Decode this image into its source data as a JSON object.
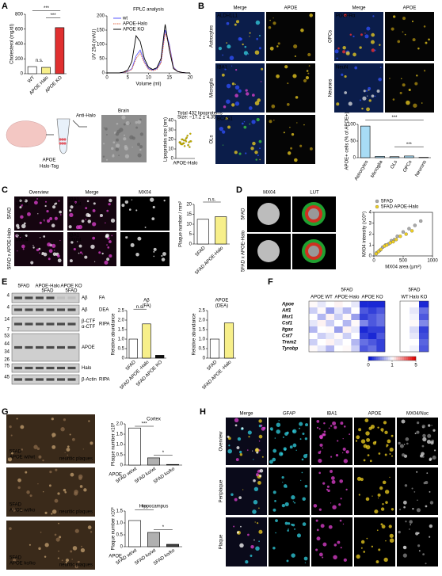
{
  "panel_labels": [
    "A",
    "B",
    "C",
    "D",
    "E",
    "F",
    "G",
    "H"
  ],
  "a": {
    "anti_halo": "Anti-Halo",
    "apoe": "APOE",
    "halo_tag": "Halo-Tag",
    "brain": "Brain"
  },
  "b": {
    "columns": [
      "Merge",
      "APOE"
    ],
    "rows": [
      {
        "cell": "Astrocytes",
        "marker": "ALDH1L1"
      },
      {
        "cell": "Microglia",
        "marker": "IBA1"
      },
      {
        "cell": "OLs",
        "marker": "BCAS1"
      },
      {
        "cell": "OPCs",
        "marker": "PDGFRα"
      },
      {
        "cell": "Neurons",
        "marker": "NeuN"
      }
    ]
  },
  "c": {
    "columns": [
      "Overview",
      "Merge",
      "MX04"
    ],
    "rows": [
      "5FAD",
      "5FAD x APOE-Halo"
    ],
    "stain1": "IBA1",
    "stain2": "MX04"
  },
  "d": {
    "columns": [
      "MX04",
      "LUT"
    ],
    "rows": [
      "5FAD",
      "5FAD x APOE-Halo"
    ]
  },
  "e": {
    "groups": [
      [
        "5FAD"
      ],
      [
        "APOE-Halo",
        "5FAD"
      ],
      [
        "APOE KO",
        "5FAD"
      ]
    ],
    "blot": [
      {
        "markers": [
          "4"
        ],
        "labels": [
          "Aβ"
        ],
        "fraction": "FA"
      },
      {
        "markers": [
          "4"
        ],
        "labels": [
          "Aβ"
        ],
        "fraction": "DEA"
      },
      {
        "markers": [
          "14",
          "7"
        ],
        "labels": [
          "β-CTF",
          "α-CTF"
        ],
        "fraction": "RIPA"
      },
      {
        "markers": [
          "53",
          "44",
          "34",
          "26"
        ],
        "labels": [
          "APOE"
        ]
      },
      {
        "markers": [
          "75"
        ],
        "labels": [
          "Halo"
        ]
      },
      {
        "markers": [
          "45"
        ],
        "labels": [
          "β-Actin"
        ],
        "fraction": "RIPA"
      }
    ]
  },
  "g": {
    "images": [
      [
        "5FAD",
        "APOE wt/wt"
      ],
      [
        "5FAD",
        "APOE wt/ko"
      ],
      [
        "5FAD",
        "APOE ko/ko"
      ]
    ],
    "note": "neuritic plaques"
  },
  "h": {
    "columns": [
      "Merge",
      "GFAP",
      "IBA1",
      "APOE",
      "MX04/Nuc"
    ],
    "rows": [
      "Overview",
      "Periplaque",
      "Plaque"
    ]
  },
  "chart_data": [
    {
      "type": "bar",
      "ylabel": "Cholesterol (mg/dl)",
      "categories": [
        "WT",
        "APOE Halo",
        "APOE KO"
      ],
      "values": [
        95,
        85,
        620
      ],
      "colors": [
        "#ffffff",
        "#f7ef8a",
        "#e03030"
      ],
      "ylim": [
        0,
        800
      ],
      "yticks": [
        0,
        200,
        400,
        600,
        800
      ],
      "annotations": [
        "***",
        "***",
        "n.s."
      ]
    },
    {
      "type": "line",
      "title": "FPLC analysis",
      "xlabel": "Volume (ml)",
      "ylabel": "UV 254 (mAU)",
      "x": [
        0,
        1,
        2,
        3,
        4,
        5,
        6,
        7,
        8,
        9,
        10,
        11,
        12,
        13,
        14,
        15,
        16,
        17,
        18,
        19,
        20
      ],
      "xlim": [
        0,
        20
      ],
      "xticks": [
        0,
        5,
        10,
        15,
        20
      ],
      "ylim": [
        0,
        200
      ],
      "yticks": [
        0,
        50,
        100,
        150,
        200
      ],
      "series": [
        {
          "name": "wt",
          "color": "#5a5aff",
          "values": [
            0,
            0,
            0,
            0,
            2,
            5,
            15,
            60,
            80,
            40,
            15,
            10,
            15,
            40,
            150,
            100,
            20,
            5,
            2,
            0,
            0
          ]
        },
        {
          "name": "APOE-Halo",
          "color": "#e0603a",
          "dashed": true,
          "values": [
            0,
            0,
            0,
            0,
            2,
            5,
            12,
            50,
            70,
            35,
            12,
            8,
            12,
            35,
            140,
            95,
            18,
            5,
            2,
            0,
            0
          ]
        },
        {
          "name": "APOE KO",
          "color": "#000000",
          "values": [
            0,
            0,
            0,
            0,
            3,
            10,
            40,
            130,
            110,
            50,
            20,
            12,
            18,
            50,
            170,
            80,
            15,
            5,
            2,
            0,
            0
          ]
        }
      ]
    },
    {
      "type": "strip",
      "ylabel": "Lipoprotein size (nm)",
      "categories": [
        "APOE-Halo"
      ],
      "values": [
        17,
        15,
        19,
        21,
        14,
        18,
        16,
        20,
        13,
        22,
        17,
        18,
        15,
        16,
        19,
        24,
        12,
        17,
        20,
        16,
        18,
        14,
        26,
        17,
        15
      ],
      "color": "#c8b400",
      "ylim": [
        0,
        40
      ],
      "yticks": [
        0,
        10,
        20,
        30,
        40
      ],
      "annotations": [
        "Total 432 lipoproteins",
        "Size: ~17.2 ± 4.35"
      ]
    },
    {
      "type": "bar",
      "ylabel": "APOE+ cells (% of APOE+)",
      "categories": [
        "Astrocytes",
        "Microglia",
        "OLs",
        "OPCs",
        "Neurons"
      ],
      "values": [
        95,
        4,
        3,
        5,
        1
      ],
      "color": "#a8dcf5",
      "ylim": [
        0,
        100
      ],
      "yticks": [
        0,
        50,
        100
      ],
      "annotations": [
        "***",
        "***"
      ]
    },
    {
      "type": "bar",
      "ylabel": "Plaque number / mm²",
      "categories": [
        "5FAD",
        "5FAD APOE-Halo"
      ],
      "values": [
        12.5,
        13.8
      ],
      "colors": [
        "#ffffff",
        "#f7ef8a"
      ],
      "ylim": [
        0,
        20
      ],
      "yticks": [
        0,
        5,
        10,
        15,
        20
      ],
      "annotations": [
        "n.s."
      ]
    },
    {
      "type": "scatter",
      "xlabel": "MX04 area (µm²)",
      "ylabel": "MX04 intensity (x10⁶)",
      "xlim": [
        0,
        1000
      ],
      "xticks": [
        0,
        500,
        1000
      ],
      "ylim": [
        0,
        4
      ],
      "yticks": [
        0,
        1,
        2,
        3,
        4
      ],
      "series": [
        {
          "name": "5FAD",
          "color": "#aaaaaa",
          "x": [
            50,
            100,
            150,
            200,
            250,
            300,
            350,
            400,
            500,
            600,
            700,
            800
          ],
          "y": [
            0.3,
            0.5,
            0.8,
            1.0,
            1.1,
            1.4,
            1.5,
            1.8,
            2.2,
            2.5,
            2.8,
            3.2
          ]
        },
        {
          "name": "5FAD APOE-Halo",
          "color": "#f0d020",
          "x": [
            40,
            80,
            120,
            180,
            220,
            280,
            330,
            380,
            450,
            550,
            650
          ],
          "y": [
            0.2,
            0.4,
            0.6,
            0.9,
            1.0,
            1.2,
            1.3,
            1.5,
            1.8,
            2.0,
            2.3
          ]
        }
      ]
    },
    {
      "type": "bar",
      "title": "Aβ",
      "subtitle": "(FA)",
      "ylabel": "Relative abundance",
      "categories": [
        "5FAD",
        "5FAD APOE -Halo",
        "5FAD APOE KO"
      ],
      "values": [
        1.0,
        1.8,
        0.15
      ],
      "colors": [
        "#ffffff",
        "#f7ef8a",
        "#111111"
      ],
      "ylim": [
        0,
        2.5
      ],
      "yticks": [
        0,
        0.5,
        {
          "value": 1,
          "label": "1.0"
        },
        1.5,
        {
          "value": 2,
          "label": "2.0"
        },
        2.5
      ],
      "annotations": [
        "n.s."
      ]
    },
    {
      "type": "bar",
      "title": "APOE",
      "subtitle": "(DEA)",
      "ylabel": "Relative abundance",
      "categories": [
        "5FAD",
        "5FAD APOE -Halo"
      ],
      "values": [
        1.0,
        1.85
      ],
      "colors": [
        "#ffffff",
        "#f7ef8a"
      ],
      "ylim": [
        0,
        2.5
      ],
      "yticks": [
        0,
        0.5,
        {
          "value": 1,
          "label": "1.0"
        },
        1.5,
        {
          "value": 2,
          "label": "2.0"
        },
        2.5
      ]
    },
    {
      "type": "heatmap",
      "title": "5FAD",
      "column_groups": [
        "APOE WT",
        "APOE-Halo",
        "APOE KO"
      ],
      "rows": [
        "Apoe",
        "Aif1",
        "Msr1",
        "Csf1",
        "Itgax",
        "Cst7",
        "Trem2",
        "Tyrobp"
      ],
      "values": [
        [
          1.1,
          0.9,
          1.0,
          1.2,
          1.0,
          0.9,
          0.1,
          0.1,
          0.1
        ],
        [
          0.8,
          1.1,
          0.6,
          0.9,
          0.7,
          1.0,
          0.3,
          0.2,
          0.3
        ],
        [
          1.0,
          0.7,
          1.2,
          0.8,
          1.1,
          0.6,
          0.2,
          0.3,
          0.4
        ],
        [
          0.9,
          1.2,
          0.8,
          1.0,
          0.7,
          1.1,
          0.5,
          0.3,
          0.4
        ],
        [
          0.7,
          1.0,
          1.1,
          0.6,
          1.2,
          0.9,
          0.1,
          0.2,
          0.2
        ],
        [
          1.0,
          0.8,
          0.9,
          1.1,
          0.8,
          1.0,
          0.2,
          0.1,
          0.3
        ],
        [
          0.8,
          1.0,
          1.2,
          0.9,
          1.0,
          0.7,
          0.4,
          0.3,
          0.2
        ],
        [
          1.1,
          0.9,
          0.7,
          1.0,
          1.1,
          0.8,
          0.3,
          0.4,
          0.2
        ]
      ],
      "colorscale": {
        "ticks": [
          0,
          1,
          5
        ],
        "colors": [
          "#0010d0",
          "#ffffff",
          "#e00000"
        ]
      }
    },
    {
      "type": "heatmap",
      "title": "5FAD",
      "column_groups": [
        "WT",
        "Halo",
        "KO"
      ],
      "rows": [
        "Apoe",
        "Aif1",
        "Msr1",
        "Csf1",
        "Itgax",
        "Cst7",
        "Trem2",
        "Tyrobp"
      ],
      "values": [
        [
          1,
          1.05,
          0.1
        ],
        [
          1,
          0.9,
          0.4
        ],
        [
          1,
          0.95,
          0.3
        ],
        [
          1,
          1.1,
          0.5
        ],
        [
          1,
          0.85,
          0.2
        ],
        [
          1,
          0.9,
          0.25
        ],
        [
          1,
          1.0,
          0.35
        ],
        [
          1,
          0.95,
          0.3
        ]
      ],
      "colorscale": {
        "ticks": [
          0,
          1,
          5
        ],
        "colors": [
          "#0010d0",
          "#ffffff",
          "#e00000"
        ]
      }
    },
    {
      "type": "bar",
      "title": "Cortex",
      "ylabel": "Plaque number x10³",
      "category_prefix": "APOE",
      "categories": [
        "5FAD wt/wt",
        "5FAD ko/wt",
        "5FAD ko/ko"
      ],
      "values": [
        1.8,
        0.35,
        0.03
      ],
      "colors": [
        "#ffffff",
        "#b0b0b0",
        "#404040"
      ],
      "ylim": [
        0,
        2
      ],
      "yticks": [
        0,
        0.5,
        {
          "value": 1,
          "label": "1.0"
        },
        1.5,
        {
          "value": 2,
          "label": "2.0"
        }
      ],
      "annotations": [
        "***",
        "*"
      ]
    },
    {
      "type": "bar",
      "title": "Hippocampus",
      "ylabel": "Plaque number x10³",
      "category_prefix": "APOE",
      "categories": [
        "5FAD wt/wt",
        "5FAD ko/wt",
        "5FAD ko/ko"
      ],
      "values": [
        1.1,
        0.6,
        0.1
      ],
      "colors": [
        "#ffffff",
        "#b0b0b0",
        "#404040"
      ],
      "ylim": [
        0,
        1.5
      ],
      "yticks": [
        0,
        0.5,
        {
          "value": 1,
          "label": "1.0"
        },
        1.5
      ],
      "annotations": [
        "***",
        "*"
      ]
    }
  ]
}
